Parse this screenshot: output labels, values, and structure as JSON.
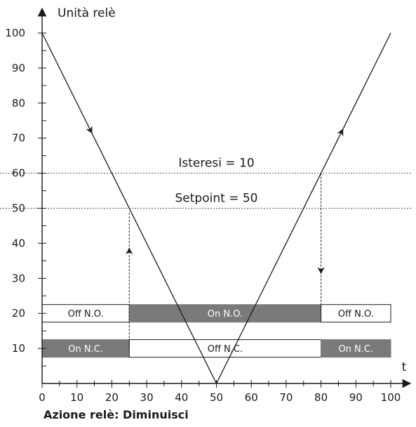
{
  "chart_data": {
    "type": "line",
    "ylabel": "Unità relè",
    "xlabel": "t",
    "xlim": [
      0,
      100
    ],
    "ylim": [
      0,
      100
    ],
    "x_ticks": [
      0,
      10,
      20,
      30,
      40,
      50,
      60,
      70,
      80,
      90,
      100
    ],
    "y_ticks": [
      10,
      20,
      30,
      40,
      50,
      60,
      70,
      80,
      90,
      100
    ],
    "series": [
      {
        "x": [
          0,
          50,
          100
        ],
        "y": [
          100,
          0,
          100
        ]
      }
    ],
    "reference_lines": [
      {
        "y": 60,
        "style": "dotted",
        "label": "Isteresi = 10"
      },
      {
        "y": 50,
        "style": "dotted",
        "label": "Setpoint = 50"
      }
    ],
    "switch_points": [
      {
        "x": 25,
        "from_y": 10,
        "to_y": 50,
        "direction": "up"
      },
      {
        "x": 80,
        "from_y": 60,
        "to_y": 20,
        "direction": "down"
      }
    ],
    "state_bars": [
      {
        "row": "N.O.",
        "level": 20,
        "segments": [
          {
            "start": 0,
            "end": 25,
            "label": "Off N.O.",
            "state": "off"
          },
          {
            "start": 25,
            "end": 80,
            "label": "On N.O.",
            "state": "on"
          },
          {
            "start": 80,
            "end": 100,
            "label": "Off N.O.",
            "state": "off"
          }
        ]
      },
      {
        "row": "N.C.",
        "level": 10,
        "segments": [
          {
            "start": 0,
            "end": 25,
            "label": "On N.C.",
            "state": "on"
          },
          {
            "start": 25,
            "end": 80,
            "label": "Off N.C.",
            "state": "off"
          },
          {
            "start": 80,
            "end": 100,
            "label": "On N.C.",
            "state": "on"
          }
        ]
      }
    ],
    "colors": {
      "on_fill": "#7a7a7a",
      "on_text": "#ffffff",
      "off_fill": "#ffffff",
      "off_text": "#1a1a1a",
      "line": "#1a1a1a"
    }
  },
  "caption": "Azione relè: Diminuisci"
}
